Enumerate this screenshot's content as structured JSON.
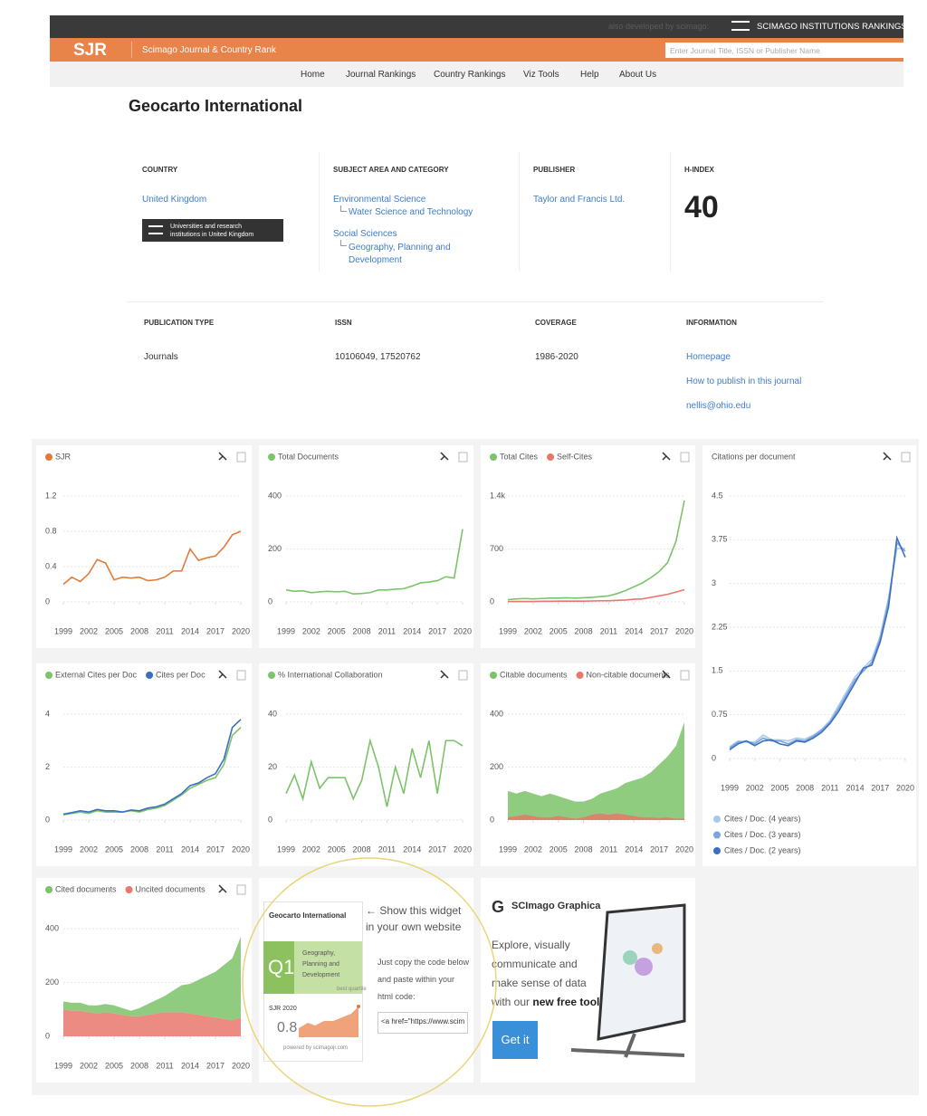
{
  "topbar": {
    "developed": "also developed by scimago:",
    "sir": "SCIMAGO INSTITUTIONS RANKINGS"
  },
  "header": {
    "logo": "SJR",
    "name": "Scimago Journal & Country Rank",
    "search": "Enter Journal Title, ISSN or Publisher Name"
  },
  "nav": [
    "Home",
    "Journal Rankings",
    "Country Rankings",
    "Viz Tools",
    "Help",
    "About Us"
  ],
  "journal": {
    "title": "Geocarto International"
  },
  "country": {
    "label": "COUNTRY",
    "value": "United Kingdom",
    "badge": "Universities and research institutions in United Kingdom"
  },
  "subject": {
    "label": "SUBJECT AREA AND CATEGORY",
    "areas": [
      {
        "name": "Environmental Science",
        "categories": [
          "Water Science and Technology"
        ]
      },
      {
        "name": "Social Sciences",
        "categories": [
          "Geography, Planning and Development"
        ]
      }
    ]
  },
  "publisher": {
    "label": "PUBLISHER",
    "value": "Taylor and Francis Ltd."
  },
  "h_index": {
    "label": "H-INDEX",
    "value": 40
  },
  "publication_type": {
    "label": "PUBLICATION TYPE",
    "value": "Journals"
  },
  "issn": {
    "label": "ISSN",
    "value": "10106049, 17520762"
  },
  "coverage": {
    "label": "COVERAGE",
    "value": "1986-2020"
  },
  "information": {
    "label": "INFORMATION",
    "links": [
      "Homepage",
      "How to publish in this journal",
      "nellis@ohio.edu"
    ]
  },
  "timeline": {
    "x": [
      1999,
      2000,
      2001,
      2002,
      2003,
      2004,
      2005,
      2006,
      2007,
      2008,
      2009,
      2010,
      2011,
      2012,
      2013,
      2014,
      2015,
      2016,
      2017,
      2018,
      2019,
      2020
    ],
    "xlim": [
      1999,
      2020
    ],
    "xticks": [
      1999,
      2002,
      2005,
      2008,
      2011,
      2014,
      2017,
      2020
    ]
  },
  "charts": [
    {
      "type": "line",
      "grid": true,
      "ylim": [
        0,
        1.2
      ],
      "yticks": [
        0,
        0.4,
        0.8,
        1.2
      ],
      "series": [
        {
          "name": "SJR",
          "color": "#e07b39",
          "values": [
            0.2,
            0.28,
            0.23,
            0.32,
            0.48,
            0.44,
            0.25,
            0.28,
            0.27,
            0.28,
            0.24,
            0.25,
            0.28,
            0.35,
            0.35,
            0.6,
            0.47,
            0.5,
            0.52,
            0.62,
            0.76,
            0.8
          ]
        }
      ]
    },
    {
      "type": "line",
      "grid": true,
      "ylim": [
        0,
        400
      ],
      "yticks": [
        0,
        200,
        400
      ],
      "series": [
        {
          "name": "Total Documents",
          "color": "#7cc36a",
          "values": [
            45,
            40,
            42,
            35,
            38,
            40,
            38,
            40,
            30,
            32,
            35,
            45,
            45,
            48,
            50,
            60,
            72,
            75,
            80,
            95,
            90,
            275
          ]
        }
      ]
    },
    {
      "type": "line",
      "grid": true,
      "ylim": [
        0,
        1400
      ],
      "yticks": [
        0,
        700,
        {
          "value": 1400,
          "label": "1.4k"
        }
      ],
      "series": [
        {
          "name": "Total Cites",
          "color": "#7cc36a",
          "values": [
            30,
            40,
            45,
            40,
            45,
            50,
            50,
            55,
            50,
            55,
            60,
            70,
            80,
            110,
            150,
            200,
            250,
            320,
            400,
            520,
            800,
            1340
          ]
        },
        {
          "name": "Self-Cites",
          "color": "#e8776c",
          "values": [
            5,
            5,
            5,
            5,
            8,
            8,
            10,
            10,
            10,
            10,
            12,
            15,
            15,
            20,
            25,
            35,
            40,
            60,
            80,
            100,
            130,
            160
          ]
        }
      ]
    },
    {
      "type": "line",
      "grid": true,
      "title": "Citations per document",
      "legend": "bottom",
      "ylim": [
        0,
        4.5
      ],
      "yticks": [
        0,
        0.75,
        1.5,
        2.25,
        3,
        3.75,
        4.5
      ],
      "series": [
        {
          "name": "Cites / Doc. (4 years)",
          "color": "#a8c8ec",
          "values": [
            0.2,
            0.3,
            0.28,
            0.28,
            0.4,
            0.32,
            0.32,
            0.3,
            0.35,
            0.33,
            0.4,
            0.5,
            0.65,
            0.9,
            1.15,
            1.4,
            1.55,
            1.7,
            2.1,
            2.75,
            3.6,
            3.6
          ]
        },
        {
          "name": "Cites / Doc. (3 years)",
          "color": "#7aa5dd",
          "values": [
            0.18,
            0.28,
            0.3,
            0.25,
            0.35,
            0.3,
            0.3,
            0.25,
            0.32,
            0.3,
            0.38,
            0.48,
            0.62,
            0.85,
            1.1,
            1.35,
            1.5,
            1.65,
            2.05,
            2.7,
            3.7,
            3.55
          ]
        },
        {
          "name": "Cites / Doc. (2 years)",
          "color": "#3c6fbe",
          "values": [
            0.15,
            0.25,
            0.3,
            0.22,
            0.3,
            0.32,
            0.25,
            0.22,
            0.3,
            0.28,
            0.35,
            0.45,
            0.6,
            0.8,
            1.05,
            1.3,
            1.55,
            1.6,
            2.0,
            2.6,
            3.78,
            3.45
          ]
        }
      ]
    },
    {
      "type": "line",
      "grid": true,
      "ylim": [
        0,
        4
      ],
      "yticks": [
        0,
        2,
        4
      ],
      "series": [
        {
          "name": "External Cites per Doc",
          "color": "#7cc36a",
          "values": [
            0.2,
            0.25,
            0.3,
            0.25,
            0.35,
            0.3,
            0.3,
            0.3,
            0.35,
            0.3,
            0.4,
            0.45,
            0.55,
            0.75,
            0.95,
            1.2,
            1.35,
            1.5,
            1.6,
            2.1,
            3.2,
            3.5
          ]
        },
        {
          "name": "Cites per Doc",
          "color": "#3c6fbe",
          "values": [
            0.22,
            0.28,
            0.35,
            0.3,
            0.4,
            0.35,
            0.35,
            0.3,
            0.38,
            0.35,
            0.45,
            0.5,
            0.6,
            0.8,
            1.0,
            1.3,
            1.4,
            1.6,
            1.75,
            2.3,
            3.5,
            3.8
          ]
        }
      ]
    },
    {
      "type": "line",
      "grid": true,
      "ylim": [
        0,
        40
      ],
      "yticks": [
        0,
        20,
        40
      ],
      "series": [
        {
          "name": "% International Collaboration",
          "color": "#7cc36a",
          "values": [
            10,
            17,
            8,
            22,
            12,
            16,
            16,
            16,
            8,
            15,
            30,
            20,
            5,
            20,
            10,
            27,
            16,
            30,
            10,
            30,
            30,
            28
          ]
        }
      ]
    },
    {
      "type": "area",
      "grid": true,
      "ylim": [
        0,
        400
      ],
      "yticks": [
        0,
        200,
        400
      ],
      "series": [
        {
          "name": "Citable documents",
          "color": "#7cc36a",
          "values": [
            110,
            100,
            110,
            100,
            90,
            100,
            90,
            80,
            70,
            70,
            80,
            100,
            110,
            120,
            140,
            150,
            160,
            180,
            210,
            240,
            280,
            370
          ]
        },
        {
          "name": "Non-citable documents",
          "color": "#e8776c",
          "values": [
            10,
            15,
            20,
            15,
            10,
            10,
            15,
            10,
            5,
            10,
            20,
            25,
            20,
            25,
            20,
            15,
            10,
            10,
            8,
            10,
            5,
            5
          ]
        }
      ]
    },
    {
      "type": "area",
      "stacked": true,
      "grid": true,
      "ylim": [
        0,
        400
      ],
      "yticks": [
        0,
        200,
        400
      ],
      "series": [
        {
          "name": "Cited documents",
          "color": "#7cc36a",
          "values": [
            30,
            30,
            30,
            25,
            30,
            30,
            30,
            25,
            20,
            30,
            40,
            50,
            60,
            80,
            100,
            110,
            130,
            150,
            170,
            200,
            230,
            300
          ]
        },
        {
          "name": "Uncited documents",
          "color": "#e8776c",
          "values": [
            100,
            95,
            95,
            90,
            85,
            90,
            85,
            80,
            75,
            75,
            80,
            85,
            90,
            90,
            90,
            85,
            80,
            75,
            70,
            65,
            60,
            70
          ]
        }
      ]
    }
  ],
  "widget": {
    "title": "Geocarto International",
    "quartile": "Q1",
    "category": "Geography, Planning and Development",
    "quartile_note": "best quartile",
    "sjr_label": "SJR 2020",
    "sjr_value": 0.8,
    "powered": "powered by scimagojr.com",
    "cta": "← Show this widget in your own website",
    "instructions": "Just copy the code below and paste within your html code:",
    "code": "<a href=\"https://www.scimag"
  },
  "graphica": {
    "logo": "G",
    "title": "SCImago Graphica",
    "text": "Explore, visually communicate and make sense of data with our",
    "bold": "new free tool.",
    "button": "Get it"
  }
}
